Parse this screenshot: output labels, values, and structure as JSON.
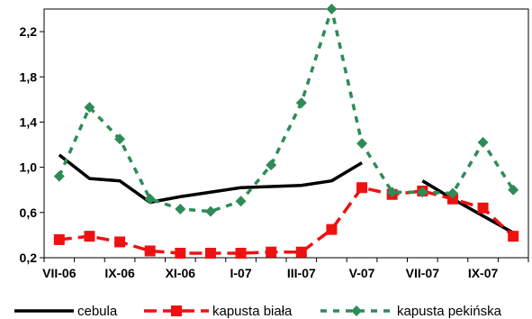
{
  "chart_data": {
    "type": "line",
    "title": "",
    "xlabel": "",
    "ylabel": "",
    "ylim": [
      0.2,
      2.4
    ],
    "yticks": [
      "0,2",
      "0,6",
      "1,0",
      "1,4",
      "1,8",
      "2,2"
    ],
    "ytick_values": [
      0.2,
      0.6,
      1.0,
      1.4,
      1.8,
      2.2
    ],
    "x": [
      "VII-06",
      "VIII-06",
      "IX-06",
      "X-06",
      "XI-06",
      "XII-06",
      "I-07",
      "II-07",
      "III-07",
      "IV-07",
      "V-07",
      "VI-07",
      "VII-07",
      "VIII-07",
      "IX-07",
      "X-07"
    ],
    "xtick_labels": [
      "VII-06",
      "IX-06",
      "XI-06",
      "I-07",
      "III-07",
      "V-07",
      "VII-07",
      "IX-07"
    ],
    "xtick_positions": [
      0,
      2,
      4,
      6,
      8,
      10,
      12,
      14
    ],
    "grid": false,
    "legend_position": "bottom",
    "series": [
      {
        "name": "cebula",
        "color": "#000000",
        "line_style": "solid",
        "marker": "none",
        "values": [
          1.11,
          0.9,
          0.88,
          0.69,
          0.74,
          0.78,
          0.82,
          0.83,
          0.84,
          0.88,
          1.04,
          null,
          0.88,
          0.72,
          0.57,
          0.42
        ]
      },
      {
        "name": "kapusta biała",
        "color": "#ee1111",
        "line_style": "dashed",
        "marker": "square",
        "values": [
          0.36,
          0.39,
          0.34,
          0.26,
          0.24,
          0.24,
          0.24,
          0.25,
          0.25,
          0.45,
          0.82,
          0.76,
          0.79,
          0.72,
          0.64,
          0.39
        ]
      },
      {
        "name": "kapusta pekińska",
        "color": "#2e8b57",
        "line_style": "dotted",
        "marker": "diamond",
        "values": [
          0.92,
          1.53,
          1.25,
          0.72,
          0.63,
          0.61,
          0.7,
          1.02,
          1.57,
          2.4,
          1.21,
          0.78,
          0.78,
          0.77,
          1.22,
          0.8
        ]
      }
    ]
  }
}
